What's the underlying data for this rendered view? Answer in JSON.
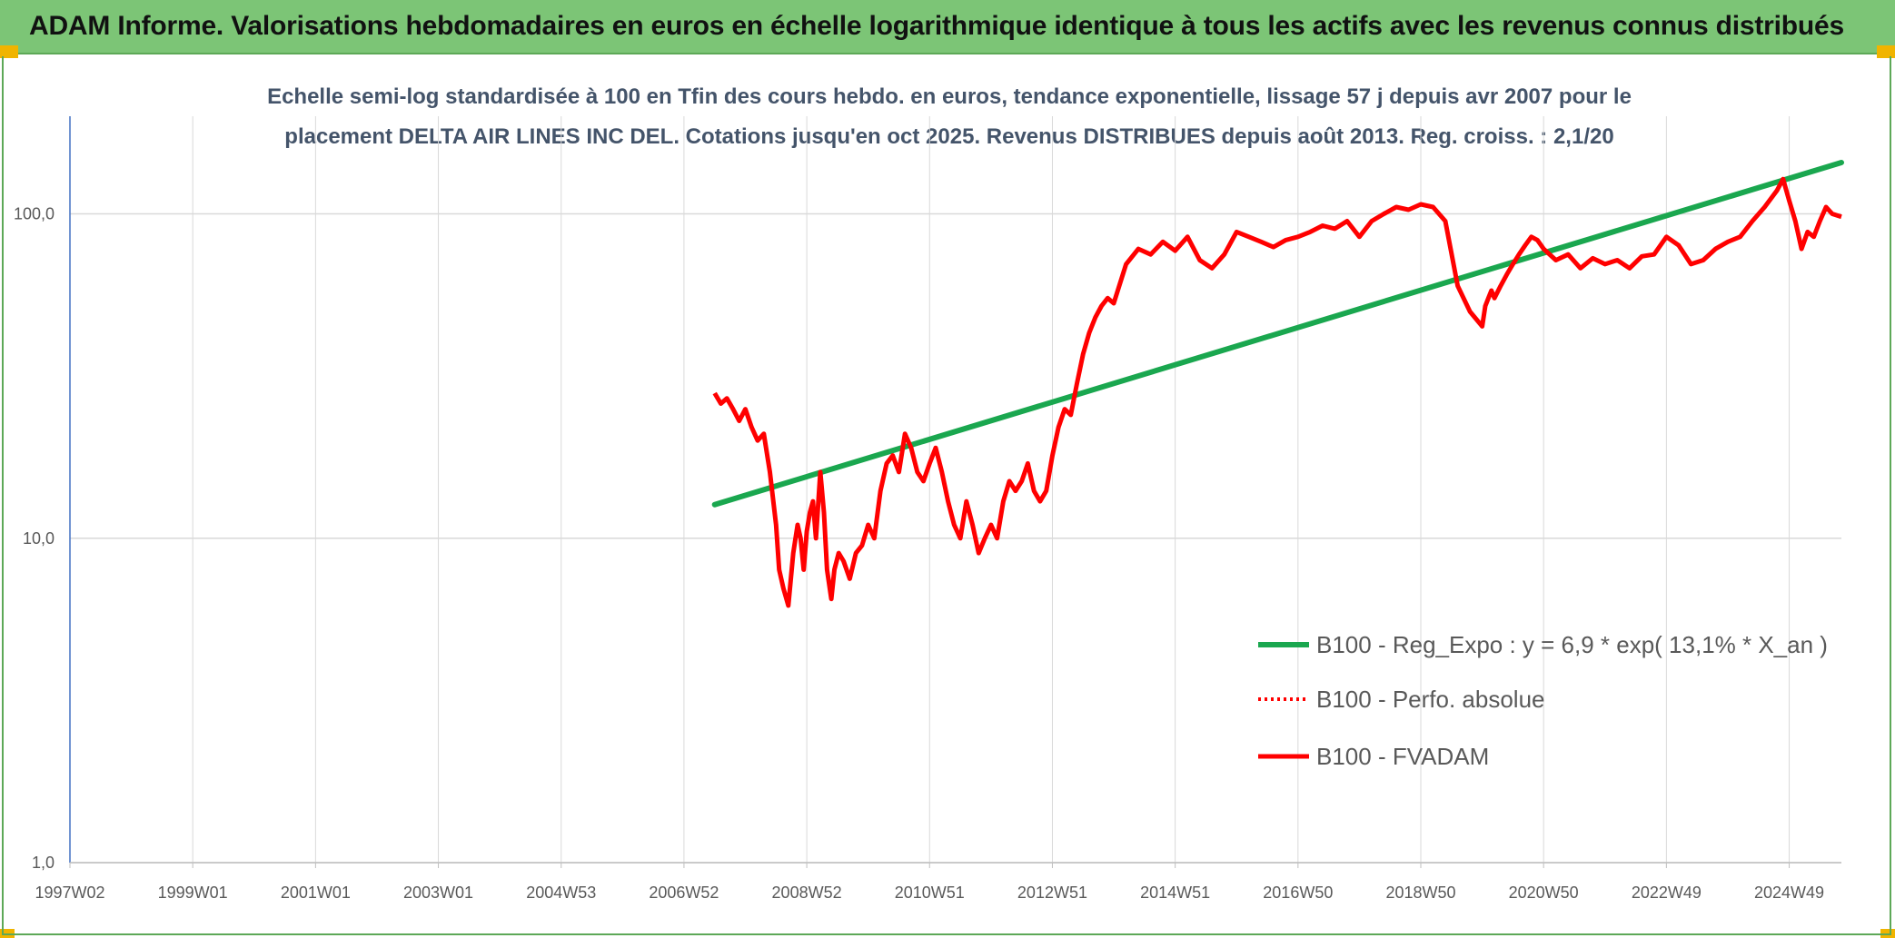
{
  "header": {
    "title": "ADAM Informe. Valorisations hebdomadaires en euros en échelle logarithmique identique à tous les actifs avec les revenus connus distribués"
  },
  "colors": {
    "trend": "#1aa74f",
    "fvadam": "#ff0000",
    "perfo": "#ff0000",
    "header_bg": "#7cc576"
  },
  "chart_data": {
    "type": "line",
    "yscale": "log",
    "title_line1": "Echelle semi-log standardisée à 100 en Tfin des cours hebdo. en euros, tendance exponentielle, lissage 57 j depuis avr 2007 pour le",
    "title_line2": "placement DELTA AIR LINES INC DEL. Cotations jusqu'en oct 2025. Revenus DISTRIBUES depuis août 2013. Reg. croiss. : 2,1/20",
    "xlim": [
      1997.0,
      2025.85
    ],
    "ylim": [
      1,
      200
    ],
    "y_ticks": [
      1,
      10,
      100
    ],
    "y_tick_labels": [
      "1,0",
      "10,0",
      "100,0"
    ],
    "x_ticks": [
      1997.0,
      1999.0,
      2001.0,
      2003.0,
      2005.0,
      2007.0,
      2009.0,
      2011.0,
      2013.0,
      2015.0,
      2017.0,
      2019.0,
      2021.0,
      2023.0,
      2025.0
    ],
    "x_tick_labels": [
      "1997W02",
      "1999W01",
      "2001W01",
      "2003W01",
      "2004W53",
      "2006W52",
      "2008W52",
      "2010W51",
      "2012W51",
      "2014W51",
      "2016W50",
      "2018W50",
      "2020W50",
      "2022W49",
      "2024W49"
    ],
    "grid": true,
    "legend_position": "center-right",
    "series": [
      {
        "name": "B100 - Reg_Expo : y = 6,9 * exp( 13,1% *  X_an )",
        "style": "solid-thick",
        "color": "#1aa74f",
        "x": [
          2007.5,
          2025.85
        ],
        "y": [
          12.7,
          144
        ]
      },
      {
        "name": "B100 - Perfo. absolue",
        "style": "dotted",
        "color": "#ff0000",
        "x": [],
        "y": []
      },
      {
        "name": "B100 - FVADAM",
        "style": "solid",
        "color": "#ff0000",
        "x": [
          2007.5,
          2007.6,
          2007.7,
          2007.8,
          2007.9,
          2008.0,
          2008.1,
          2008.2,
          2008.3,
          2008.4,
          2008.5,
          2008.55,
          2008.62,
          2008.7,
          2008.78,
          2008.85,
          2008.9,
          2008.95,
          2009.0,
          2009.05,
          2009.1,
          2009.15,
          2009.22,
          2009.28,
          2009.33,
          2009.4,
          2009.45,
          2009.52,
          2009.6,
          2009.7,
          2009.8,
          2009.9,
          2010.0,
          2010.1,
          2010.2,
          2010.3,
          2010.4,
          2010.5,
          2010.6,
          2010.7,
          2010.8,
          2010.9,
          2011.0,
          2011.1,
          2011.2,
          2011.3,
          2011.4,
          2011.5,
          2011.6,
          2011.7,
          2011.8,
          2011.9,
          2012.0,
          2012.1,
          2012.2,
          2012.3,
          2012.4,
          2012.5,
          2012.6,
          2012.7,
          2012.8,
          2012.9,
          2013.0,
          2013.1,
          2013.2,
          2013.3,
          2013.4,
          2013.5,
          2013.6,
          2013.7,
          2013.8,
          2013.9,
          2014.0,
          2014.2,
          2014.4,
          2014.6,
          2014.8,
          2015.0,
          2015.2,
          2015.4,
          2015.6,
          2015.8,
          2016.0,
          2016.2,
          2016.4,
          2016.6,
          2016.8,
          2017.0,
          2017.2,
          2017.4,
          2017.6,
          2017.8,
          2018.0,
          2018.2,
          2018.4,
          2018.6,
          2018.8,
          2019.0,
          2019.2,
          2019.4,
          2019.6,
          2019.8,
          2020.0,
          2020.05,
          2020.1,
          2020.15,
          2020.2,
          2020.3,
          2020.4,
          2020.5,
          2020.6,
          2020.7,
          2020.8,
          2020.9,
          2021.0,
          2021.2,
          2021.4,
          2021.6,
          2021.8,
          2022.0,
          2022.2,
          2022.4,
          2022.6,
          2022.8,
          2023.0,
          2023.2,
          2023.4,
          2023.6,
          2023.8,
          2024.0,
          2024.2,
          2024.4,
          2024.6,
          2024.8,
          2024.9,
          2025.0,
          2025.1,
          2025.2,
          2025.3,
          2025.4,
          2025.5,
          2025.6,
          2025.7,
          2025.85
        ],
        "y": [
          28,
          26,
          27,
          25,
          23,
          25,
          22,
          20,
          21,
          16,
          11,
          8,
          7,
          6.2,
          9,
          11,
          10,
          8,
          10.5,
          12,
          13,
          10,
          16,
          12,
          8,
          6.5,
          8,
          9,
          8.5,
          7.5,
          9,
          9.5,
          11,
          10,
          14,
          17,
          18,
          16,
          21,
          19,
          16,
          15,
          17,
          19,
          16,
          13,
          11,
          10,
          13,
          11,
          9,
          10,
          11,
          10,
          13,
          15,
          14,
          15,
          17,
          14,
          13,
          14,
          18,
          22,
          25,
          24,
          30,
          37,
          43,
          48,
          52,
          55,
          53,
          70,
          78,
          75,
          82,
          77,
          85,
          72,
          68,
          75,
          88,
          85,
          82,
          79,
          83,
          85,
          88,
          92,
          90,
          95,
          85,
          95,
          100,
          105,
          103,
          107,
          105,
          95,
          60,
          50,
          45,
          52,
          55,
          58,
          55,
          60,
          65,
          70,
          75,
          80,
          85,
          83,
          78,
          72,
          75,
          68,
          73,
          70,
          72,
          68,
          74,
          75,
          85,
          80,
          70,
          72,
          78,
          82,
          85,
          95,
          105,
          118,
          128,
          110,
          95,
          78,
          88,
          85,
          95,
          105,
          100,
          98
        ]
      }
    ]
  }
}
